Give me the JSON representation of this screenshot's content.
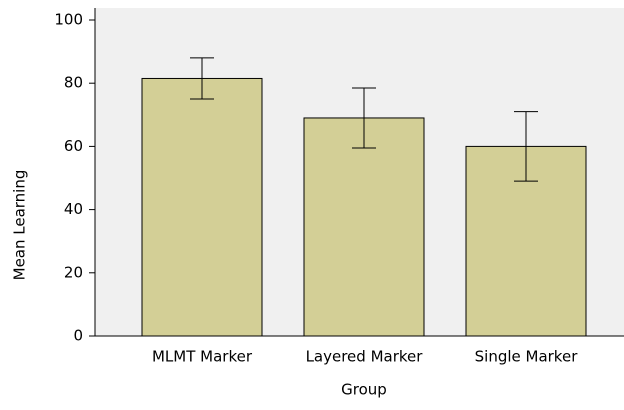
{
  "chart_data": {
    "type": "bar",
    "xlabel": "Group",
    "ylabel": "Mean Learning",
    "categories": [
      "MLMT Marker",
      "Layered Marker",
      "Single Marker"
    ],
    "values": [
      81.5,
      69,
      60
    ],
    "errors": [
      6.5,
      9.5,
      11
    ],
    "color": "#d3cf96",
    "ylim": [
      0,
      100
    ],
    "yticks": [
      0,
      20,
      40,
      60,
      80,
      100
    ]
  }
}
